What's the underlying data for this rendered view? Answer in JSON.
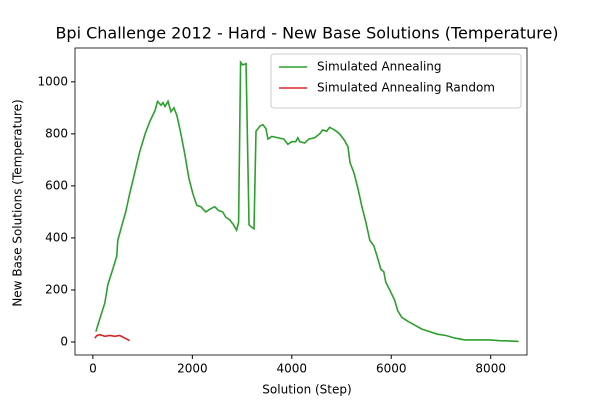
{
  "chart_data": {
    "type": "line",
    "title": "Bpi Challenge 2012 - Hard - New Base Solutions (Temperature)",
    "xlabel": "Solution (Step)",
    "ylabel": "New Base Solutions (Temperature)",
    "xlim": [
      -360,
      8730
    ],
    "ylim": [
      -50,
      1130
    ],
    "xticks": [
      0,
      2000,
      4000,
      6000,
      8000
    ],
    "yticks": [
      0,
      200,
      400,
      600,
      800,
      1000
    ],
    "grid": false,
    "legend": "upper right",
    "series": [
      {
        "name": "Simulated Annealing",
        "color": "#2ca02c",
        "x": [
          60,
          140,
          240,
          300,
          400,
          480,
          500,
          600,
          660,
          740,
          840,
          940,
          1050,
          1150,
          1250,
          1300,
          1370,
          1410,
          1450,
          1510,
          1570,
          1630,
          1690,
          1770,
          1850,
          1930,
          2010,
          2090,
          2170,
          2270,
          2350,
          2450,
          2530,
          2610,
          2670,
          2750,
          2830,
          2890,
          2930,
          2970,
          3010,
          3080,
          3140,
          3200,
          3240,
          3280,
          3360,
          3420,
          3480,
          3520,
          3600,
          3720,
          3840,
          3920,
          4000,
          4080,
          4120,
          4160,
          4260,
          4340,
          4460,
          4560,
          4620,
          4700,
          4760,
          4860,
          4960,
          5060,
          5130,
          5170,
          5250,
          5330,
          5410,
          5490,
          5570,
          5650,
          5730,
          5790,
          5850,
          5890,
          5970,
          6070,
          6130,
          6210,
          6330,
          6470,
          6610,
          6770,
          6930,
          7100,
          7280,
          7480,
          7780,
          7980,
          8180,
          8380,
          8560
        ],
        "values": [
          40,
          90,
          150,
          220,
          280,
          330,
          390,
          460,
          500,
          570,
          650,
          730,
          800,
          850,
          890,
          925,
          910,
          920,
          905,
          925,
          885,
          900,
          870,
          800,
          720,
          630,
          570,
          525,
          520,
          500,
          510,
          520,
          505,
          500,
          480,
          470,
          450,
          430,
          460,
          1075,
          1065,
          1070,
          450,
          440,
          435,
          810,
          830,
          835,
          820,
          780,
          790,
          785,
          780,
          760,
          770,
          770,
          785,
          770,
          765,
          780,
          785,
          800,
          815,
          810,
          825,
          815,
          800,
          775,
          750,
          690,
          650,
          590,
          520,
          460,
          390,
          370,
          320,
          280,
          270,
          230,
          200,
          160,
          120,
          95,
          80,
          65,
          50,
          40,
          30,
          25,
          15,
          8,
          8,
          8,
          5,
          4,
          2
        ]
      },
      {
        "name": "Simulated Annealing Random",
        "color": "#d62728",
        "x": [
          40,
          80,
          140,
          240,
          340,
          440,
          540,
          640,
          740
        ],
        "values": [
          15,
          25,
          28,
          22,
          25,
          22,
          25,
          15,
          5
        ]
      }
    ]
  }
}
